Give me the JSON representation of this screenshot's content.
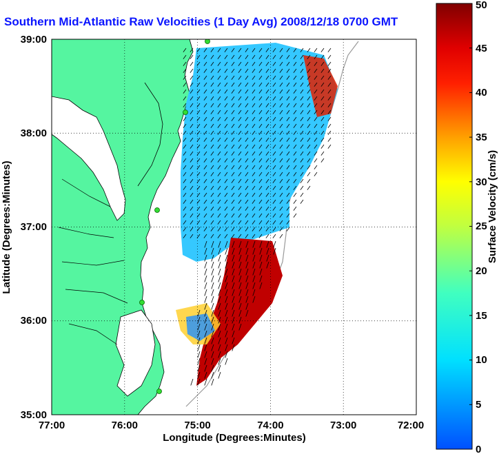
{
  "title": "Southern Mid-Atlantic Raw Velocities (1 Day Avg) 2008/12/18 0700 GMT",
  "map": {
    "x_axis_label": "Longitude (Degrees:Minutes)",
    "y_axis_label": "Latitude (Degrees:Minutes)",
    "x_ticks": [
      "77:00",
      "76:00",
      "75:00",
      "74:00",
      "73:00",
      "72:00"
    ],
    "y_ticks": [
      "39:00",
      "38:00",
      "37:00",
      "36:00",
      "35:00"
    ],
    "lon_range": [
      -77,
      -72
    ],
    "lat_range": [
      35,
      39
    ],
    "grid": "dotted",
    "land_color": "#55f5a0",
    "vector_color": "#000000"
  },
  "colorbar": {
    "label": "Surface Velocity (cm/s)",
    "ticks": [
      "0",
      "5",
      "10",
      "15",
      "20",
      "25",
      "30",
      "35",
      "40",
      "45",
      "50"
    ],
    "range": [
      0,
      50
    ],
    "colormap": "jet"
  }
}
